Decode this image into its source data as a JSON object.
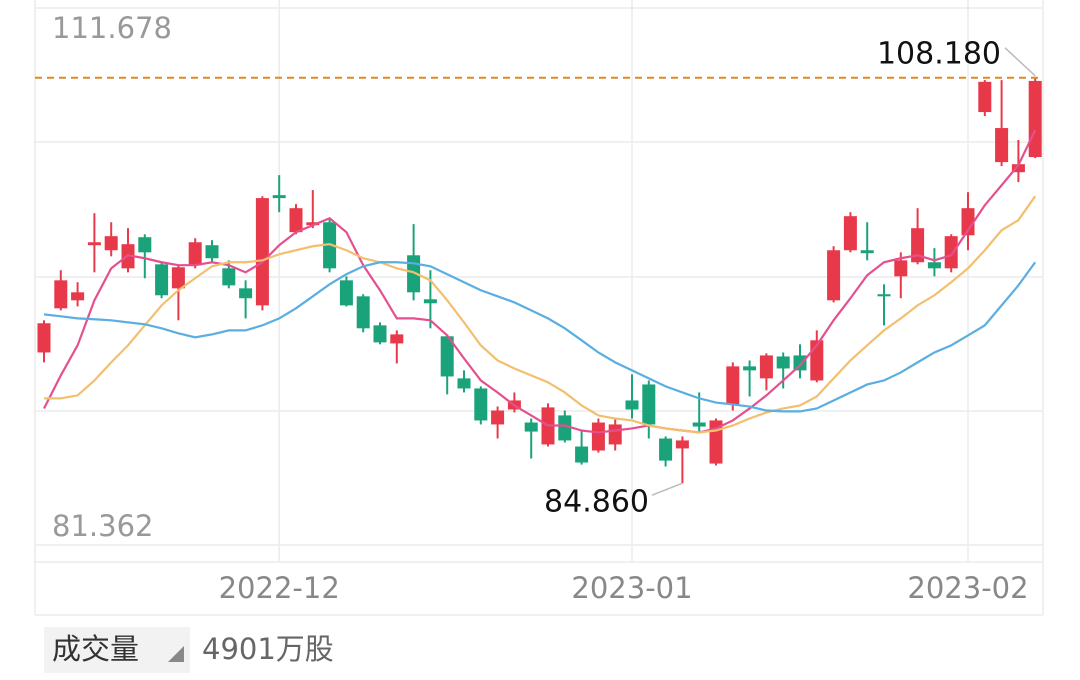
{
  "chart_data": {
    "type": "candlestick",
    "categories": [
      null,
      null,
      null,
      null,
      null,
      null,
      null,
      null,
      null,
      null,
      null,
      null,
      null,
      null,
      "2022-12",
      null,
      null,
      null,
      null,
      null,
      null,
      null,
      null,
      null,
      null,
      null,
      null,
      null,
      null,
      null,
      null,
      null,
      null,
      null,
      null,
      "2023-01",
      null,
      null,
      null,
      null,
      null,
      null,
      null,
      null,
      null,
      null,
      null,
      null,
      null,
      null,
      null,
      null,
      null,
      null,
      null,
      "2023-02",
      null,
      null,
      null,
      null
    ],
    "open": [
      92.38,
      94.92,
      95.38,
      98.55,
      98.26,
      97.22,
      99.01,
      97.45,
      96.07,
      97.4,
      98.55,
      97.22,
      96.07,
      95.09,
      101.43,
      99.3,
      99.7,
      99.87,
      96.53,
      95.61,
      93.94,
      92.9,
      97.97,
      95.44,
      93.31,
      90.89,
      90.31,
      88.24,
      89.1,
      88.35,
      87.09,
      88.76,
      86.97,
      86.74,
      87.09,
      89.62,
      90.54,
      87.43,
      86.86,
      88.35,
      85.99,
      89.39,
      91.58,
      90.89,
      92.15,
      92.21,
      90.77,
      95.38,
      98.26,
      98.26,
      95.73,
      96.76,
      97.57,
      97.57,
      97.22,
      99.12,
      106.21,
      103.33,
      102.75,
      103.62
    ],
    "high": [
      94.23,
      97.11,
      96.42,
      100.39,
      99.87,
      99.53,
      99.18,
      97.57,
      97.4,
      98.95,
      98.84,
      97.68,
      96.53,
      101.37,
      102.58,
      100.91,
      101.72,
      100.1,
      96.76,
      95.73,
      94.11,
      93.65,
      99.76,
      97.11,
      93.42,
      91.35,
      90.43,
      89.27,
      90.08,
      88.58,
      89.45,
      89.04,
      87.89,
      88.58,
      88.58,
      91.12,
      90.77,
      87.55,
      87.55,
      90.08,
      88.58,
      91.81,
      91.92,
      92.33,
      92.38,
      92.85,
      93.65,
      98.49,
      100.45,
      99.87,
      96.3,
      98.14,
      100.68,
      98.38,
      99.18,
      101.6,
      108.05,
      108.05,
      104.6,
      108.18
    ],
    "low": [
      91.81,
      94.8,
      95.03,
      96.99,
      97.91,
      96.99,
      96.65,
      95.5,
      94.23,
      97.22,
      97.57,
      96.07,
      94.34,
      94.8,
      100.45,
      99.18,
      99.53,
      96.99,
      95.03,
      93.54,
      92.85,
      91.75,
      95.38,
      93.77,
      89.97,
      90.08,
      88.24,
      87.43,
      88.93,
      86.28,
      86.97,
      87.2,
      85.93,
      86.62,
      86.74,
      88.58,
      87.43,
      85.82,
      84.86,
      87.78,
      85.88,
      89.04,
      89.85,
      90.2,
      90.31,
      90.89,
      90.66,
      95.26,
      98.14,
      97.68,
      93.94,
      95.5,
      97.45,
      96.76,
      96.99,
      98.26,
      105.98,
      103.1,
      102.18,
      103.56
    ],
    "close": [
      94.06,
      96.53,
      95.84,
      98.72,
      99.07,
      98.61,
      98.14,
      95.67,
      97.28,
      98.72,
      97.8,
      96.24,
      95.5,
      101.26,
      101.26,
      100.68,
      99.87,
      97.22,
      95.09,
      93.77,
      92.96,
      93.42,
      95.84,
      95.21,
      91.0,
      90.31,
      88.47,
      89.04,
      89.62,
      87.83,
      89.22,
      87.32,
      86.05,
      88.35,
      88.24,
      89.1,
      88.24,
      86.16,
      87.32,
      88.12,
      88.47,
      91.58,
      91.35,
      92.21,
      91.46,
      91.35,
      93.08,
      98.26,
      100.22,
      98.09,
      95.61,
      97.68,
      99.53,
      97.22,
      99.07,
      100.68,
      107.95,
      105.29,
      103.21,
      108.0
    ],
    "up_color": "#e8394a",
    "down_color": "#1aa27a",
    "series": [
      {
        "color": "#e4508f",
        "values": [
          89.16,
          91.06,
          92.79,
          95.38,
          97.22,
          97.97,
          97.8,
          97.57,
          97.4,
          97.4,
          97.57,
          97.4,
          96.99,
          97.57,
          98.55,
          99.3,
          99.7,
          100.1,
          99.3,
          97.4,
          95.96,
          94.34,
          94.34,
          94.23,
          93.36,
          92.04,
          90.77,
          90.08,
          89.33,
          88.76,
          88.18,
          88.18,
          87.89,
          87.78,
          87.89,
          88.01,
          88.18,
          88.01,
          87.89,
          87.78,
          88.01,
          88.47,
          89.16,
          89.91,
          90.77,
          91.64,
          92.79,
          94.23,
          95.5,
          96.82,
          97.57,
          97.8,
          97.97,
          97.68,
          97.97,
          99.41,
          100.85,
          102.0,
          103.16,
          105.17
        ]
      },
      {
        "color": "#f2bf6e",
        "values": [
          89.74,
          89.74,
          89.91,
          90.77,
          91.81,
          92.79,
          93.94,
          95.09,
          95.96,
          96.65,
          97.34,
          97.57,
          97.57,
          97.68,
          98.03,
          98.26,
          98.49,
          98.61,
          98.26,
          97.8,
          97.57,
          97.22,
          96.99,
          96.53,
          95.38,
          94.11,
          92.79,
          91.92,
          91.46,
          91.06,
          90.66,
          90.08,
          89.33,
          88.76,
          88.58,
          88.47,
          88.18,
          88.01,
          87.89,
          87.78,
          87.89,
          88.18,
          88.58,
          88.93,
          89.16,
          89.33,
          89.85,
          90.89,
          91.92,
          92.79,
          93.65,
          94.34,
          95.09,
          95.67,
          96.42,
          97.22,
          98.26,
          99.41,
          99.99,
          101.37
        ]
      },
      {
        "color": "#5aaee0",
        "values": [
          94.57,
          94.46,
          94.34,
          94.29,
          94.23,
          94.11,
          94.0,
          93.77,
          93.48,
          93.25,
          93.42,
          93.65,
          93.65,
          93.94,
          94.34,
          94.92,
          95.61,
          96.3,
          96.88,
          97.34,
          97.57,
          97.57,
          97.51,
          97.34,
          96.88,
          96.42,
          95.96,
          95.61,
          95.26,
          94.8,
          94.34,
          93.77,
          93.08,
          92.38,
          91.81,
          91.35,
          90.89,
          90.43,
          90.08,
          89.74,
          89.5,
          89.39,
          89.27,
          89.04,
          88.99,
          88.99,
          89.16,
          89.62,
          90.08,
          90.54,
          90.77,
          91.23,
          91.81,
          92.38,
          92.79,
          93.36,
          93.94,
          95.09,
          96.24,
          97.57
        ]
      }
    ],
    "ylim": [
      81.362,
      111.678
    ],
    "yticks": [
      81.362,
      111.678
    ],
    "max_label": "108.180",
    "min_label": "84.860",
    "max_line_color": "#e08a1e"
  },
  "volume": {
    "label": "成交量",
    "value": "4901万股"
  }
}
